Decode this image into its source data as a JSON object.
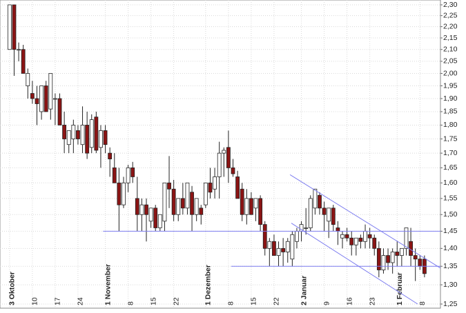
{
  "chart_data": {
    "type": "candlestick",
    "log_scale": true,
    "grid": true,
    "up_color": "#ffffff",
    "down_color": "#8b1414",
    "line_color": "#7b7bef",
    "xlim": [
      -2.1,
      94.5
    ],
    "ylim": [
      1.25,
      2.3
    ],
    "yticks": [
      {
        "value": 1.25,
        "label": "1,25"
      },
      {
        "value": 1.3,
        "label": "1,30"
      },
      {
        "value": 1.35,
        "label": "1,35"
      },
      {
        "value": 1.4,
        "label": "1,40"
      },
      {
        "value": 1.45,
        "label": "1,45"
      },
      {
        "value": 1.5,
        "label": "1,50"
      },
      {
        "value": 1.55,
        "label": "1,55"
      },
      {
        "value": 1.6,
        "label": "1,60"
      },
      {
        "value": 1.65,
        "label": "1,65"
      },
      {
        "value": 1.7,
        "label": "1,70"
      },
      {
        "value": 1.75,
        "label": "1,75"
      },
      {
        "value": 1.8,
        "label": "1,80"
      },
      {
        "value": 1.85,
        "label": "1,85"
      },
      {
        "value": 1.9,
        "label": "1,90"
      },
      {
        "value": 1.95,
        "label": "1,95"
      },
      {
        "value": 2.0,
        "label": "2,00"
      },
      {
        "value": 2.05,
        "label": "2,05"
      },
      {
        "value": 2.1,
        "label": "2,10"
      },
      {
        "value": 2.15,
        "label": "2,15"
      },
      {
        "value": 2.2,
        "label": "2,20"
      },
      {
        "value": 2.25,
        "label": "2,25"
      },
      {
        "value": 2.3,
        "label": "2,30"
      }
    ],
    "xticks": [
      {
        "value": 0,
        "label": "3 Oktober"
      },
      {
        "value": 5,
        "label": "10"
      },
      {
        "value": 10,
        "label": "17"
      },
      {
        "value": 15,
        "label": "24"
      },
      {
        "value": 21,
        "label": "1 November"
      },
      {
        "value": 26,
        "label": "8"
      },
      {
        "value": 31,
        "label": "15"
      },
      {
        "value": 36,
        "label": "22"
      },
      {
        "value": 43,
        "label": "1 Dezember"
      },
      {
        "value": 48,
        "label": "8"
      },
      {
        "value": 53,
        "label": "15"
      },
      {
        "value": 58,
        "label": "22"
      },
      {
        "value": 64,
        "label": "2 Januar"
      },
      {
        "value": 69,
        "label": "9"
      },
      {
        "value": 74,
        "label": "16"
      },
      {
        "value": 79,
        "label": "23"
      },
      {
        "value": 85,
        "label": "1 Februar"
      },
      {
        "value": 90,
        "label": "8"
      }
    ],
    "ohlc": [
      [
        2.1,
        2.3,
        2.1,
        2.3
      ],
      [
        2.3,
        2.3,
        1.99,
        2.1
      ],
      [
        2.1,
        2.13,
        2.05,
        2.1
      ],
      [
        2.1,
        2.12,
        2.0,
        2.0
      ],
      [
        1.95,
        2.02,
        1.9,
        2.0
      ],
      [
        1.92,
        1.97,
        1.88,
        1.9
      ],
      [
        1.9,
        1.95,
        1.8,
        1.88
      ],
      [
        1.85,
        1.95,
        1.82,
        1.95
      ],
      [
        1.95,
        1.97,
        1.85,
        1.85
      ],
      [
        1.86,
        2.0,
        1.82,
        2.0
      ],
      [
        1.9,
        1.92,
        1.8,
        1.9
      ],
      [
        1.9,
        1.92,
        1.8,
        1.8
      ],
      [
        1.8,
        1.85,
        1.7,
        1.75
      ],
      [
        1.73,
        1.78,
        1.7,
        1.78
      ],
      [
        1.75,
        1.82,
        1.7,
        1.8
      ],
      [
        1.78,
        1.8,
        1.73,
        1.75
      ],
      [
        1.73,
        1.87,
        1.7,
        1.8
      ],
      [
        1.8,
        1.85,
        1.68,
        1.7
      ],
      [
        1.72,
        1.84,
        1.7,
        1.82
      ],
      [
        1.83,
        1.85,
        1.7,
        1.71
      ],
      [
        1.72,
        1.8,
        1.65,
        1.78
      ],
      [
        1.78,
        1.8,
        1.7,
        1.73
      ],
      [
        1.7,
        1.72,
        1.62,
        1.68
      ],
      [
        1.65,
        1.7,
        1.6,
        1.6
      ],
      [
        1.6,
        1.65,
        1.45,
        1.53
      ],
      [
        1.53,
        1.62,
        1.52,
        1.6
      ],
      [
        1.6,
        1.66,
        1.57,
        1.65
      ],
      [
        1.65,
        1.67,
        1.6,
        1.62
      ],
      [
        1.55,
        1.62,
        1.45,
        1.5
      ],
      [
        1.5,
        1.55,
        1.45,
        1.53
      ],
      [
        1.53,
        1.55,
        1.42,
        1.5
      ],
      [
        1.48,
        1.52,
        1.46,
        1.52
      ],
      [
        1.52,
        1.53,
        1.45,
        1.46
      ],
      [
        1.46,
        1.5,
        1.45,
        1.5
      ],
      [
        1.48,
        1.6,
        1.45,
        1.6
      ],
      [
        1.6,
        1.69,
        1.52,
        1.58
      ],
      [
        1.58,
        1.61,
        1.48,
        1.5
      ],
      [
        1.5,
        1.55,
        1.48,
        1.55
      ],
      [
        1.55,
        1.6,
        1.5,
        1.52
      ],
      [
        1.52,
        1.6,
        1.5,
        1.6
      ],
      [
        1.57,
        1.59,
        1.45,
        1.5
      ],
      [
        1.5,
        1.55,
        1.48,
        1.55
      ],
      [
        1.52,
        1.53,
        1.47,
        1.5
      ],
      [
        1.53,
        1.6,
        1.52,
        1.6
      ],
      [
        1.6,
        1.65,
        1.55,
        1.57
      ],
      [
        1.58,
        1.65,
        1.55,
        1.62
      ],
      [
        1.62,
        1.74,
        1.55,
        1.7
      ],
      [
        1.7,
        1.72,
        1.62,
        1.71
      ],
      [
        1.72,
        1.78,
        1.6,
        1.65
      ],
      [
        1.65,
        1.68,
        1.62,
        1.63
      ],
      [
        1.62,
        1.64,
        1.55,
        1.55
      ],
      [
        1.58,
        1.6,
        1.48,
        1.5
      ],
      [
        1.5,
        1.58,
        1.47,
        1.55
      ],
      [
        1.55,
        1.57,
        1.5,
        1.5
      ],
      [
        1.52,
        1.55,
        1.48,
        1.55
      ],
      [
        1.55,
        1.56,
        1.45,
        1.47
      ],
      [
        1.47,
        1.48,
        1.38,
        1.4
      ],
      [
        1.4,
        1.43,
        1.35,
        1.42
      ],
      [
        1.42,
        1.44,
        1.38,
        1.38
      ],
      [
        1.38,
        1.42,
        1.35,
        1.4
      ],
      [
        1.4,
        1.43,
        1.35,
        1.39
      ],
      [
        1.39,
        1.43,
        1.36,
        1.42
      ],
      [
        1.37,
        1.45,
        1.35,
        1.44
      ],
      [
        1.42,
        1.46,
        1.4,
        1.45
      ],
      [
        1.45,
        1.48,
        1.42,
        1.47
      ],
      [
        1.46,
        1.52,
        1.44,
        1.46
      ],
      [
        1.46,
        1.56,
        1.45,
        1.55
      ],
      [
        1.52,
        1.58,
        1.5,
        1.58
      ],
      [
        1.56,
        1.57,
        1.5,
        1.52
      ],
      [
        1.52,
        1.54,
        1.45,
        1.5
      ],
      [
        1.48,
        1.52,
        1.43,
        1.52
      ],
      [
        1.52,
        1.53,
        1.45,
        1.47
      ],
      [
        1.46,
        1.48,
        1.41,
        1.45
      ],
      [
        1.43,
        1.45,
        1.4,
        1.44
      ],
      [
        1.44,
        1.46,
        1.42,
        1.43
      ],
      [
        1.43,
        1.45,
        1.38,
        1.41
      ],
      [
        1.41,
        1.43,
        1.38,
        1.43
      ],
      [
        1.43,
        1.44,
        1.4,
        1.42
      ],
      [
        1.42,
        1.47,
        1.4,
        1.45
      ],
      [
        1.44,
        1.46,
        1.4,
        1.43
      ],
      [
        1.43,
        1.44,
        1.38,
        1.4
      ],
      [
        1.4,
        1.42,
        1.32,
        1.34
      ],
      [
        1.34,
        1.4,
        1.33,
        1.38
      ],
      [
        1.38,
        1.4,
        1.34,
        1.36
      ],
      [
        1.36,
        1.4,
        1.33,
        1.39
      ],
      [
        1.39,
        1.42,
        1.35,
        1.38
      ],
      [
        1.38,
        1.4,
        1.35,
        1.4
      ],
      [
        1.4,
        1.46,
        1.38,
        1.46
      ],
      [
        1.42,
        1.46,
        1.35,
        1.38
      ],
      [
        1.38,
        1.4,
        1.31,
        1.37
      ],
      [
        1.37,
        1.38,
        1.34,
        1.35
      ],
      [
        1.37,
        1.38,
        1.32,
        1.33
      ]
    ],
    "trendlines": [
      {
        "x": [
          20.5,
          94.5
        ],
        "y": [
          1.45,
          1.45
        ]
      },
      {
        "x": [
          48.6,
          94.5
        ],
        "y": [
          1.35,
          1.35
        ]
      },
      {
        "x": [
          61.5,
          94.5
        ],
        "y": [
          1.627,
          1.345
        ]
      },
      {
        "x": [
          61.8,
          89.5
        ],
        "y": [
          1.474,
          1.25
        ]
      }
    ]
  }
}
